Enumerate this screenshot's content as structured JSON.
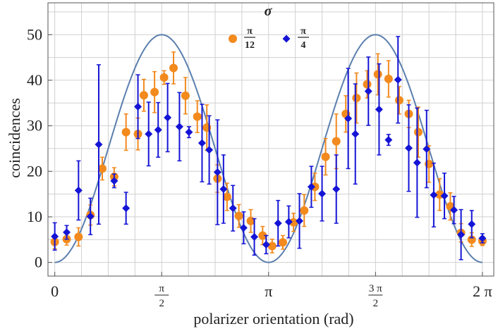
{
  "chart_data": {
    "type": "scatter",
    "xlabel": "polarizer orientation (rad)",
    "ylabel": "coincidences",
    "xlim": [
      -0.1,
      6.45
    ],
    "ylim": [
      -3,
      57
    ],
    "x_ticks": [
      {
        "value": 0,
        "label": "0"
      },
      {
        "value": 1.5708,
        "num": "π",
        "den": "2"
      },
      {
        "value": 3.1416,
        "label": "π"
      },
      {
        "value": 4.7124,
        "num": "3 π",
        "den": "2"
      },
      {
        "value": 6.2832,
        "label": "2 π"
      }
    ],
    "y_ticks": [
      0,
      10,
      20,
      30,
      40,
      50
    ],
    "grid": true,
    "legend": {
      "title": "σ",
      "placement": "top-center",
      "entries": [
        {
          "num": "π",
          "den": "12",
          "color": "#f28a1e",
          "marker": "circle"
        },
        {
          "num": "π",
          "den": "4",
          "color": "#1414d6",
          "marker": "diamond"
        }
      ]
    },
    "curve": {
      "color": "#5b7fae",
      "amplitude": 50,
      "function": "50 sin^2(x)"
    },
    "series": [
      {
        "color": "#f28a1e",
        "marker": "circle",
        "points": [
          [
            0.0,
            4.5,
            1.5
          ],
          [
            0.175,
            5.1,
            1.3
          ],
          [
            0.349,
            5.6,
            2.0
          ],
          [
            0.524,
            10.4,
            2.2
          ],
          [
            0.698,
            20.6,
            2.5
          ],
          [
            0.873,
            18.8,
            2.0
          ],
          [
            1.047,
            28.6,
            4.0
          ],
          [
            1.222,
            28.2,
            3.5
          ],
          [
            1.309,
            36.7,
            3.5
          ],
          [
            1.466,
            37.4,
            4.5
          ],
          [
            1.606,
            40.6,
            1.5
          ],
          [
            1.745,
            42.7,
            3.5
          ],
          [
            1.92,
            36.6,
            4.0
          ],
          [
            2.094,
            32.0,
            3.5
          ],
          [
            2.234,
            29.6,
            5.0
          ],
          [
            2.391,
            18.4,
            3.0
          ],
          [
            2.531,
            14.4,
            3.0
          ],
          [
            2.705,
            10.2,
            2.5
          ],
          [
            2.88,
            9.1,
            2.5
          ],
          [
            3.054,
            5.9,
            2.0
          ],
          [
            3.194,
            3.6,
            1.5
          ],
          [
            3.351,
            4.4,
            1.5
          ],
          [
            3.508,
            8.8,
            2.0
          ],
          [
            3.665,
            11.4,
            3.5
          ],
          [
            3.822,
            16.6,
            3.0
          ],
          [
            3.979,
            23.2,
            4.0
          ],
          [
            4.136,
            26.6,
            6.0
          ],
          [
            4.276,
            32.6,
            4.0
          ],
          [
            4.433,
            36.1,
            5.5
          ],
          [
            4.59,
            39.1,
            3.0
          ],
          [
            4.747,
            41.3,
            4.5
          ],
          [
            4.904,
            40.3,
            4.0
          ],
          [
            5.061,
            35.6,
            3.0
          ],
          [
            5.201,
            32.6,
            3.0
          ],
          [
            5.341,
            28.6,
            5.5
          ],
          [
            5.498,
            21.6,
            4.0
          ],
          [
            5.655,
            14.9,
            3.5
          ],
          [
            5.812,
            12.3,
            3.0
          ],
          [
            5.969,
            6.5,
            2.0
          ],
          [
            6.126,
            5.0,
            1.5
          ],
          [
            6.283,
            4.7,
            1.0
          ]
        ]
      },
      {
        "color": "#1414d6",
        "marker": "diamond",
        "points": [
          [
            0.0,
            5.7,
            3.0
          ],
          [
            0.175,
            6.6,
            1.5
          ],
          [
            0.349,
            15.8,
            6.5
          ],
          [
            0.524,
            10.1,
            4.0
          ],
          [
            0.646,
            25.9,
            17.5
          ],
          [
            0.873,
            17.9,
            1.5
          ],
          [
            1.047,
            11.9,
            3.5
          ],
          [
            1.222,
            34.2,
            7.0
          ],
          [
            1.379,
            28.2,
            7.0
          ],
          [
            1.519,
            29.1,
            6.0
          ],
          [
            1.658,
            31.8,
            7.5
          ],
          [
            1.832,
            29.8,
            7.5
          ],
          [
            1.972,
            28.6,
            1.2
          ],
          [
            2.164,
            26.2,
            8.5
          ],
          [
            2.269,
            24.7,
            7.5
          ],
          [
            2.391,
            19.8,
            11.5
          ],
          [
            2.479,
            16.1,
            7.5
          ],
          [
            2.618,
            11.9,
            5.0
          ],
          [
            2.775,
            7.6,
            3.5
          ],
          [
            2.932,
            5.6,
            4.0
          ],
          [
            3.106,
            3.9,
            2.0
          ],
          [
            3.281,
            8.6,
            5.0
          ],
          [
            3.438,
            8.9,
            3.5
          ],
          [
            3.595,
            9.1,
            6.0
          ],
          [
            3.77,
            16.6,
            4.5
          ],
          [
            3.927,
            15.1,
            6.0
          ],
          [
            4.136,
            16.1,
            7.5
          ],
          [
            4.311,
            31.6,
            11.0
          ],
          [
            4.416,
            28.2,
            11.0
          ],
          [
            4.608,
            37.6,
            7.5
          ],
          [
            4.765,
            33.6,
            10.0
          ],
          [
            4.904,
            26.9,
            1.2
          ],
          [
            5.043,
            40.1,
            9.5
          ],
          [
            5.201,
            25.1,
            9.5
          ],
          [
            5.324,
            21.9,
            12.0
          ],
          [
            5.463,
            24.9,
            8.5
          ],
          [
            5.568,
            14.8,
            7.0
          ],
          [
            5.725,
            14.6,
            5.0
          ],
          [
            5.865,
            11.5,
            3.0
          ],
          [
            5.969,
            6.1,
            5.5
          ],
          [
            6.126,
            8.4,
            3.0
          ],
          [
            6.283,
            5.3,
            1.0
          ]
        ]
      }
    ]
  }
}
